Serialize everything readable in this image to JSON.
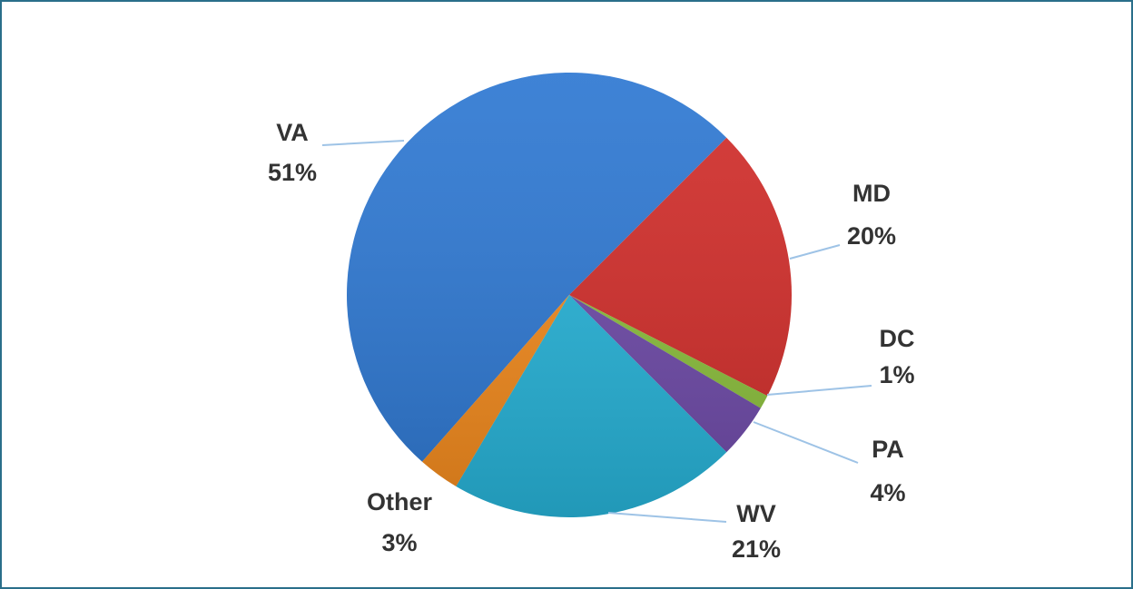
{
  "chart_data": {
    "type": "pie",
    "categories": [
      "VA",
      "MD",
      "DC",
      "PA",
      "WV",
      "Other"
    ],
    "values": [
      51,
      20,
      1,
      4,
      21,
      3
    ],
    "value_labels": [
      "51%",
      "20%",
      "1%",
      "4%",
      "21%",
      "3%"
    ],
    "colors": [
      "#2e78d2",
      "#d12d2a",
      "#8bbf3c",
      "#6e4aa8",
      "#27b3d8",
      "#f28a1d"
    ]
  }
}
